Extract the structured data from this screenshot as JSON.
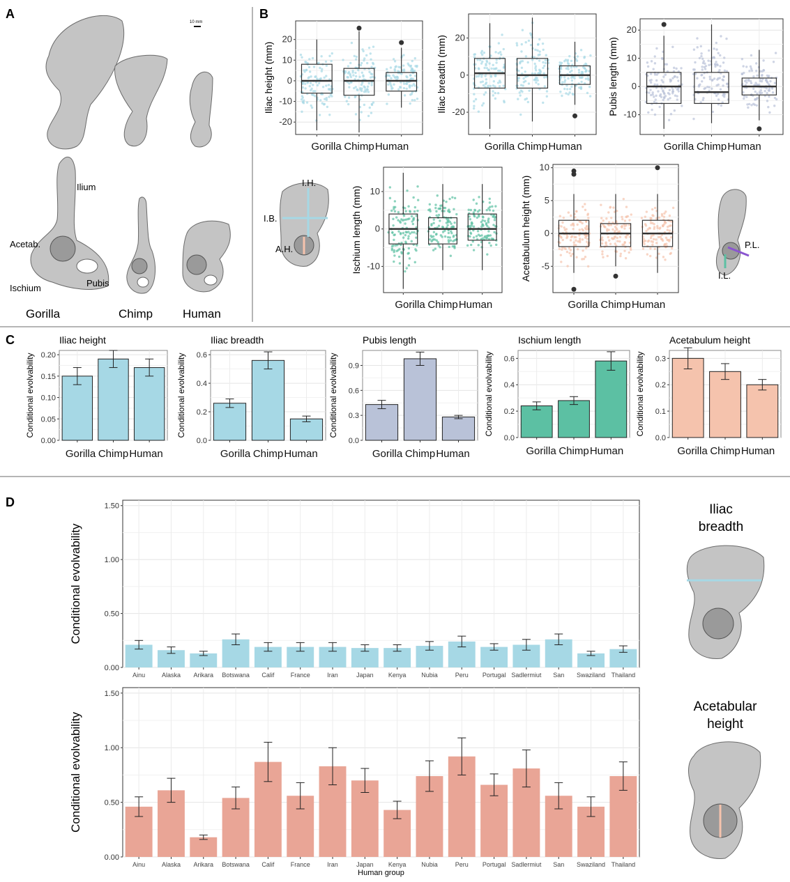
{
  "panel_letters": [
    "A",
    "B",
    "C",
    "D"
  ],
  "colors": {
    "iliac": "#A6D8E5",
    "pubis": "#B9C2D8",
    "ischium": "#5CC0A3",
    "acetabulum_c": "#F5C3AD",
    "acetabulum_d": "#E9A596",
    "bone": "#bdbdbd",
    "divider": "#b5b5b5"
  },
  "panel_a": {
    "scale_label": "10 mm",
    "labels": {
      "ilium": "Ilium",
      "acetab": "Acetab.",
      "ischium": "Ischium",
      "pubis": "Pubis"
    },
    "species": [
      "Gorilla",
      "Chimp",
      "Human"
    ]
  },
  "panel_b_schematic_labels": {
    "ih": "I.H.",
    "ib": "I.B.",
    "ah": "A.H.",
    "pl": "P.L.",
    "il": "I.L."
  },
  "panel_d_icon_titles": {
    "top": [
      "Iliac",
      "breadth"
    ],
    "bottom": [
      "Acetabular",
      "height"
    ]
  },
  "chart_data": [
    {
      "type": "box",
      "panel": "B",
      "categories": [
        "Gorilla",
        "Chimp",
        "Human"
      ],
      "ylabel": "Iliac height (mm)",
      "xlabel": "",
      "ylim": [
        -26,
        29
      ],
      "yticks": [
        -20,
        -10,
        0,
        10,
        20
      ],
      "color": "#A6D8E5",
      "boxes": [
        {
          "q1": -6,
          "median": 0,
          "q3": 8,
          "whisker_low": -24,
          "whisker_high": 20,
          "outliers": []
        },
        {
          "q1": -7,
          "median": 0,
          "q3": 6,
          "whisker_low": -25,
          "whisker_high": 24,
          "outliers": [
            25.5
          ]
        },
        {
          "q1": -5,
          "median": 0,
          "q3": 4,
          "whisker_low": -13,
          "whisker_high": 16,
          "outliers": [
            18.5
          ]
        }
      ]
    },
    {
      "type": "box",
      "panel": "B",
      "categories": [
        "Gorilla",
        "Chimp",
        "Human"
      ],
      "ylabel": "Iliac breadth (mm)",
      "xlabel": "",
      "ylim": [
        -32,
        33
      ],
      "yticks": [
        -20,
        0,
        20
      ],
      "color": "#A6D8E5",
      "boxes": [
        {
          "q1": -7,
          "median": 1,
          "q3": 9,
          "whisker_low": -29,
          "whisker_high": 28,
          "outliers": []
        },
        {
          "q1": -7,
          "median": 0,
          "q3": 9,
          "whisker_low": -25,
          "whisker_high": 31,
          "outliers": []
        },
        {
          "q1": -5,
          "median": 0,
          "q3": 5,
          "whisker_low": -16,
          "whisker_high": 18,
          "outliers": [
            -22
          ]
        }
      ]
    },
    {
      "type": "box",
      "panel": "B",
      "categories": [
        "Gorilla",
        "Chimp",
        "Human"
      ],
      "ylabel": "Pubis length (mm)",
      "xlabel": "",
      "ylim": [
        -17,
        24
      ],
      "yticks": [
        -10,
        0,
        10,
        20
      ],
      "color": "#B9C2D8",
      "boxes": [
        {
          "q1": -6,
          "median": 0,
          "q3": 5,
          "whisker_low": -15,
          "whisker_high": 18,
          "outliers": [
            22
          ]
        },
        {
          "q1": -6,
          "median": -2,
          "q3": 5,
          "whisker_low": -13,
          "whisker_high": 22,
          "outliers": []
        },
        {
          "q1": -3,
          "median": 0,
          "q3": 3,
          "whisker_low": -12,
          "whisker_high": 13,
          "outliers": [
            -15
          ]
        }
      ]
    },
    {
      "type": "box",
      "panel": "B",
      "categories": [
        "Gorilla",
        "Chimp",
        "Human"
      ],
      "ylabel": "Ischium length (mm)",
      "xlabel": "",
      "ylim": [
        -17,
        16.5
      ],
      "yticks": [
        -10,
        0,
        10
      ],
      "color": "#5CC0A3",
      "boxes": [
        {
          "q1": -4,
          "median": 0,
          "q3": 4,
          "whisker_low": -16,
          "whisker_high": 15,
          "outliers": []
        },
        {
          "q1": -4,
          "median": 0,
          "q3": 3,
          "whisker_low": -11,
          "whisker_high": 12,
          "outliers": []
        },
        {
          "q1": -3,
          "median": 0,
          "q3": 4,
          "whisker_low": -11,
          "whisker_high": 12,
          "outliers": []
        }
      ]
    },
    {
      "type": "box",
      "panel": "B",
      "categories": [
        "Gorilla",
        "Chimp",
        "Human"
      ],
      "ylabel": "Acetabulum height (mm)",
      "xlabel": "",
      "ylim": [
        -9,
        10.5
      ],
      "yticks": [
        -5,
        0,
        5,
        10
      ],
      "color": "#F5C3AD",
      "boxes": [
        {
          "q1": -2,
          "median": 0,
          "q3": 2,
          "whisker_low": -6,
          "whisker_high": 6,
          "outliers": [
            9.5,
            9,
            -8.5
          ]
        },
        {
          "q1": -2,
          "median": 0,
          "q3": 1.5,
          "whisker_low": -5,
          "whisker_high": 6,
          "outliers": [
            -6.5
          ]
        },
        {
          "q1": -2,
          "median": 0,
          "q3": 2,
          "whisker_low": -6,
          "whisker_high": 6,
          "outliers": [
            10
          ]
        }
      ]
    },
    {
      "type": "bar",
      "panel": "C",
      "title": "Iliac height",
      "categories": [
        "Gorilla",
        "Chimp",
        "Human"
      ],
      "values": [
        0.15,
        0.19,
        0.17
      ],
      "errors": [
        0.02,
        0.02,
        0.02
      ],
      "ylabel": "Conditional evolvability",
      "ylim": [
        0,
        0.21
      ],
      "yticks": [
        "0.00",
        "0.05",
        "0.10",
        "0.15",
        "0.20"
      ],
      "color": "#A6D8E5"
    },
    {
      "type": "bar",
      "panel": "C",
      "title": "Iliac breadth",
      "categories": [
        "Gorilla",
        "Chimp",
        "Human"
      ],
      "values": [
        0.26,
        0.56,
        0.15
      ],
      "errors": [
        0.03,
        0.06,
        0.02
      ],
      "ylabel": "Conditional evolvability",
      "ylim": [
        0,
        0.63
      ],
      "yticks": [
        "0.0",
        "0.2",
        "0.4",
        "0.6"
      ],
      "color": "#A6D8E5"
    },
    {
      "type": "bar",
      "panel": "C",
      "title": "Pubis length",
      "categories": [
        "Gorilla",
        "Chimp",
        "Human"
      ],
      "values": [
        0.43,
        0.98,
        0.28
      ],
      "errors": [
        0.05,
        0.08,
        0.02
      ],
      "ylabel": "Conditional evolvability",
      "ylim": [
        0,
        1.08
      ],
      "yticks": [
        "0.0",
        "0.3",
        "0.6",
        "0.9"
      ],
      "color": "#B9C2D8"
    },
    {
      "type": "bar",
      "panel": "C",
      "title": "Ischium length",
      "categories": [
        "Gorilla",
        "Chimp",
        "Human"
      ],
      "values": [
        0.24,
        0.28,
        0.58
      ],
      "errors": [
        0.03,
        0.03,
        0.07
      ],
      "ylabel": "Conditional evolvability",
      "ylim": [
        0,
        0.66
      ],
      "yticks": [
        "0.0",
        "0.2",
        "0.4",
        "0.6"
      ],
      "color": "#5CC0A3"
    },
    {
      "type": "bar",
      "panel": "C",
      "title": "Acetabulum height",
      "categories": [
        "Gorilla",
        "Chimp",
        "Human"
      ],
      "values": [
        0.3,
        0.25,
        0.2
      ],
      "errors": [
        0.04,
        0.03,
        0.02
      ],
      "ylabel": "Conditional evolvability",
      "ylim": [
        0,
        0.33
      ],
      "yticks": [
        "0.0",
        "0.1",
        "0.2",
        "0.3"
      ],
      "color": "#F5C3AD"
    },
    {
      "type": "bar",
      "panel": "D",
      "categories": [
        "Ainu",
        "Alaska",
        "Arikara",
        "Botswana",
        "Calif",
        "France",
        "Iran",
        "Japan",
        "Kenya",
        "Nubia",
        "Peru",
        "Portugal",
        "Sadlermiut",
        "San",
        "Swaziland",
        "Thailand"
      ],
      "values": [
        0.21,
        0.16,
        0.13,
        0.26,
        0.19,
        0.19,
        0.19,
        0.18,
        0.18,
        0.2,
        0.24,
        0.19,
        0.21,
        0.26,
        0.13,
        0.17
      ],
      "errors": [
        0.04,
        0.03,
        0.02,
        0.05,
        0.04,
        0.04,
        0.04,
        0.03,
        0.03,
        0.04,
        0.05,
        0.03,
        0.05,
        0.05,
        0.02,
        0.03
      ],
      "ylabel": "Conditional evolvability",
      "xlabel": "",
      "ylim": [
        0,
        1.55
      ],
      "yticks": [
        "0.00",
        "0.50",
        "1.00",
        "1.50"
      ],
      "color": "#A6D8E5"
    },
    {
      "type": "bar",
      "panel": "D",
      "categories": [
        "Ainu",
        "Alaska",
        "Arikara",
        "Botswana",
        "Calif",
        "France",
        "Iran",
        "Japan",
        "Kenya",
        "Nubia",
        "Peru",
        "Portugal",
        "Sadlermiut",
        "San",
        "Swaziland",
        "Thailand"
      ],
      "values": [
        0.46,
        0.61,
        0.18,
        0.54,
        0.87,
        0.56,
        0.83,
        0.7,
        0.43,
        0.74,
        0.92,
        0.66,
        0.81,
        0.56,
        0.46,
        0.74
      ],
      "errors": [
        0.09,
        0.11,
        0.02,
        0.1,
        0.18,
        0.12,
        0.17,
        0.11,
        0.08,
        0.14,
        0.17,
        0.1,
        0.17,
        0.12,
        0.09,
        0.13
      ],
      "ylabel": "Conditional evolvability",
      "xlabel": "Human group",
      "ylim": [
        0,
        1.55
      ],
      "yticks": [
        "0.00",
        "0.50",
        "1.00",
        "1.50"
      ],
      "color": "#E9A596"
    }
  ]
}
